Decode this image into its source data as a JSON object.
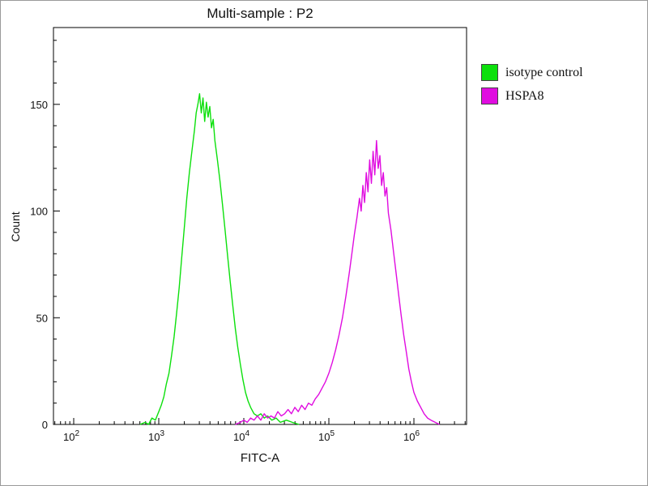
{
  "title": "Multi-sample : P2",
  "chart_data": {
    "type": "line",
    "title": "Multi-sample : P2",
    "xlabel": "FITC-A",
    "ylabel": "Count",
    "x_scale": "log10",
    "xlog_range": [
      1.762,
      6.619
    ],
    "ylim": [
      0,
      186
    ],
    "grid": false,
    "legend_position": "top-right-outside",
    "x_ticks": [
      {
        "log": 2,
        "base": "10",
        "exp": "2"
      },
      {
        "log": 3,
        "base": "10",
        "exp": "3"
      },
      {
        "log": 4,
        "base": "10",
        "exp": "4"
      },
      {
        "log": 5,
        "base": "10",
        "exp": "5"
      },
      {
        "log": 6,
        "base": "10",
        "exp": "6"
      }
    ],
    "y_ticks": [
      {
        "value": 0,
        "label": "0"
      },
      {
        "value": 50,
        "label": "50"
      },
      {
        "value": 100,
        "label": "100"
      },
      {
        "value": 150,
        "label": "150"
      }
    ],
    "y_minor_step": 10,
    "series": [
      {
        "name": "isotype control",
        "color": "#0ce00c",
        "peak_log10_x": 3.48,
        "peak_count": 155,
        "points_logx_count": [
          [
            2.78,
            0
          ],
          [
            2.84,
            1
          ],
          [
            2.88,
            0
          ],
          [
            2.92,
            3
          ],
          [
            2.96,
            2
          ],
          [
            3.0,
            6
          ],
          [
            3.03,
            9
          ],
          [
            3.06,
            13
          ],
          [
            3.09,
            19
          ],
          [
            3.12,
            24
          ],
          [
            3.15,
            32
          ],
          [
            3.18,
            41
          ],
          [
            3.21,
            52
          ],
          [
            3.24,
            64
          ],
          [
            3.27,
            78
          ],
          [
            3.3,
            92
          ],
          [
            3.33,
            106
          ],
          [
            3.36,
            118
          ],
          [
            3.39,
            128
          ],
          [
            3.42,
            138
          ],
          [
            3.44,
            146
          ],
          [
            3.46,
            150
          ],
          [
            3.48,
            155
          ],
          [
            3.5,
            146
          ],
          [
            3.52,
            153
          ],
          [
            3.54,
            142
          ],
          [
            3.56,
            151
          ],
          [
            3.58,
            144
          ],
          [
            3.6,
            149
          ],
          [
            3.62,
            139
          ],
          [
            3.64,
            143
          ],
          [
            3.66,
            133
          ],
          [
            3.69,
            124
          ],
          [
            3.72,
            114
          ],
          [
            3.75,
            103
          ],
          [
            3.78,
            91
          ],
          [
            3.81,
            79
          ],
          [
            3.84,
            67
          ],
          [
            3.87,
            56
          ],
          [
            3.9,
            45
          ],
          [
            3.93,
            36
          ],
          [
            3.96,
            28
          ],
          [
            3.99,
            21
          ],
          [
            4.02,
            15
          ],
          [
            4.05,
            11
          ],
          [
            4.08,
            8
          ],
          [
            4.12,
            5
          ],
          [
            4.16,
            4
          ],
          [
            4.2,
            5
          ],
          [
            4.24,
            3
          ],
          [
            4.28,
            4
          ],
          [
            4.33,
            2
          ],
          [
            4.38,
            3
          ],
          [
            4.43,
            1
          ],
          [
            4.5,
            2
          ],
          [
            4.57,
            1
          ],
          [
            4.65,
            0
          ]
        ]
      },
      {
        "name": "HSPA8",
        "color": "#e00ce0",
        "peak_log10_x": 5.56,
        "peak_count": 133,
        "points_logx_count": [
          [
            3.9,
            0
          ],
          [
            3.96,
            1
          ],
          [
            4.0,
            2
          ],
          [
            4.04,
            1
          ],
          [
            4.08,
            3
          ],
          [
            4.12,
            2
          ],
          [
            4.16,
            4
          ],
          [
            4.2,
            2
          ],
          [
            4.24,
            5
          ],
          [
            4.28,
            3
          ],
          [
            4.32,
            4
          ],
          [
            4.36,
            3
          ],
          [
            4.4,
            6
          ],
          [
            4.44,
            4
          ],
          [
            4.48,
            5
          ],
          [
            4.52,
            7
          ],
          [
            4.56,
            5
          ],
          [
            4.6,
            8
          ],
          [
            4.64,
            6
          ],
          [
            4.68,
            9
          ],
          [
            4.72,
            7
          ],
          [
            4.76,
            10
          ],
          [
            4.8,
            9
          ],
          [
            4.84,
            12
          ],
          [
            4.88,
            14
          ],
          [
            4.92,
            17
          ],
          [
            4.96,
            20
          ],
          [
            5.0,
            24
          ],
          [
            5.04,
            29
          ],
          [
            5.08,
            35
          ],
          [
            5.12,
            42
          ],
          [
            5.16,
            50
          ],
          [
            5.2,
            60
          ],
          [
            5.24,
            71
          ],
          [
            5.27,
            80
          ],
          [
            5.3,
            89
          ],
          [
            5.33,
            97
          ],
          [
            5.36,
            106
          ],
          [
            5.38,
            100
          ],
          [
            5.4,
            112
          ],
          [
            5.42,
            104
          ],
          [
            5.44,
            118
          ],
          [
            5.46,
            109
          ],
          [
            5.48,
            124
          ],
          [
            5.5,
            113
          ],
          [
            5.52,
            128
          ],
          [
            5.54,
            117
          ],
          [
            5.56,
            133
          ],
          [
            5.58,
            120
          ],
          [
            5.6,
            126
          ],
          [
            5.62,
            112
          ],
          [
            5.64,
            118
          ],
          [
            5.66,
            107
          ],
          [
            5.68,
            111
          ],
          [
            5.7,
            99
          ],
          [
            5.73,
            91
          ],
          [
            5.76,
            81
          ],
          [
            5.79,
            71
          ],
          [
            5.82,
            61
          ],
          [
            5.85,
            51
          ],
          [
            5.88,
            42
          ],
          [
            5.91,
            34
          ],
          [
            5.94,
            26
          ],
          [
            5.97,
            20
          ],
          [
            6.0,
            15
          ],
          [
            6.04,
            11
          ],
          [
            6.08,
            8
          ],
          [
            6.12,
            5
          ],
          [
            6.16,
            3
          ],
          [
            6.2,
            2
          ],
          [
            6.25,
            1
          ],
          [
            6.3,
            0
          ]
        ]
      }
    ]
  }
}
